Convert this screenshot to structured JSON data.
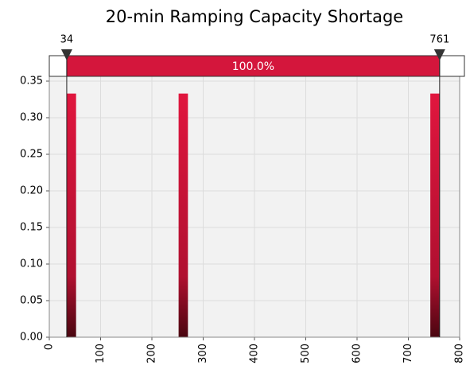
{
  "chart_data": {
    "type": "histogram",
    "title": "20-min Ramping Capacity Shortage",
    "bins": [
      34,
      52.175,
      70.35,
      88.525,
      106.7,
      124.875,
      143.05,
      161.225,
      179.4,
      197.575,
      215.75,
      233.925,
      252.1,
      270.275,
      288.45,
      306.625,
      324.8,
      342.975,
      361.15,
      379.325,
      397.5,
      415.675,
      433.85,
      452.025,
      470.2,
      488.375,
      506.55,
      524.725,
      542.9,
      561.075,
      579.25,
      597.425,
      615.6,
      633.775,
      651.95,
      670.125,
      688.3,
      706.475,
      724.65,
      742.825,
      761
    ],
    "values": [
      0.333,
      0,
      0,
      0,
      0,
      0,
      0,
      0,
      0,
      0,
      0,
      0,
      0.333,
      0,
      0,
      0,
      0,
      0,
      0,
      0,
      0,
      0,
      0,
      0,
      0,
      0,
      0,
      0,
      0,
      0,
      0,
      0,
      0,
      0,
      0,
      0,
      0,
      0,
      0,
      0.333
    ],
    "color": "#d4163c",
    "xlim": [
      0,
      800
    ],
    "xticks": [
      0,
      100,
      200,
      300,
      400,
      500,
      600,
      700,
      800
    ],
    "ylim": [
      0,
      0.35
    ],
    "yticks": [
      {
        "value": 0,
        "label": "0.00"
      },
      {
        "value": 0.05,
        "label": "0.05"
      },
      {
        "value": 0.1,
        "label": "0.10"
      },
      {
        "value": 0.15,
        "label": "0.15"
      },
      {
        "value": 0.2,
        "label": "0.20"
      },
      {
        "value": 0.25,
        "label": "0.25"
      },
      {
        "value": 0.3,
        "label": "0.30"
      },
      {
        "value": 0.35,
        "label": "0.35"
      }
    ],
    "grid": true,
    "delimiters": [
      34,
      761
    ],
    "band": {
      "value": 100,
      "label": "100.0%"
    }
  }
}
